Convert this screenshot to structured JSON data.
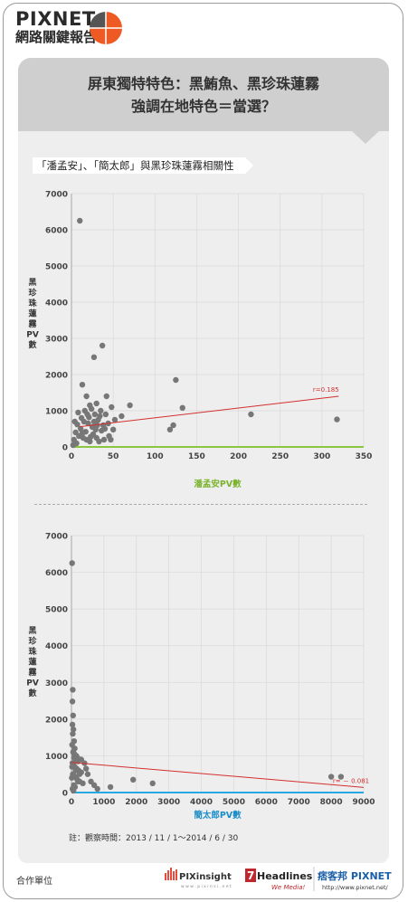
{
  "brand": {
    "name": "PIXNET",
    "subtitle": "網路關鍵報告"
  },
  "headline": {
    "line1": "屏東獨特特色：黑鮪魚、黑珍珠蓮霧",
    "line2": "強調在地特色＝當選？"
  },
  "chart_section_title": "「潘孟安」、「簡太郎」與黑珍珠蓮霧相關性",
  "note": "註：觀察時間：2013 / 11 / 1～2014 / 6 / 30",
  "footer": {
    "partner_label": "合作單位",
    "partner1": "PIXinsight",
    "partner1_url": "w w w . p i x i n s i . n e t",
    "partner2": "Headlines",
    "partner2_tag": "We Media!",
    "partner3": "痞客邦 PIXNET",
    "partner3_url": "http://www.pixnet.net/"
  },
  "colors": {
    "point": "#777777",
    "trend": "#d32f2f",
    "axis1": "#8cc63f",
    "axis2": "#29a9e1",
    "xlabel1": "#7bb32e",
    "xlabel2": "#1b8ec7"
  },
  "chart_data": [
    {
      "type": "scatter",
      "xlabel": "潘孟安PV數",
      "ylabel": "黑珍珠蓮霧PV數",
      "xlim": [
        0,
        350
      ],
      "ylim": [
        0,
        7000
      ],
      "xticks": [
        0,
        50,
        100,
        150,
        200,
        250,
        300,
        350
      ],
      "yticks": [
        0,
        1000,
        2000,
        3000,
        4000,
        5000,
        6000,
        7000
      ],
      "grid": true,
      "annotation": "r=0.185",
      "trend": [
        [
          10,
          560
        ],
        [
          320,
          1400
        ]
      ],
      "points": [
        [
          10,
          6250
        ],
        [
          37,
          2800
        ],
        [
          27,
          2480
        ],
        [
          125,
          1850
        ],
        [
          133,
          1080
        ],
        [
          122,
          600
        ],
        [
          118,
          480
        ],
        [
          215,
          900
        ],
        [
          318,
          760
        ],
        [
          13,
          1720
        ],
        [
          18,
          1400
        ],
        [
          42,
          1400
        ],
        [
          70,
          1150
        ],
        [
          60,
          850
        ],
        [
          50,
          480
        ],
        [
          48,
          1100
        ],
        [
          30,
          1200
        ],
        [
          22,
          1150
        ],
        [
          35,
          1000
        ],
        [
          8,
          950
        ],
        [
          12,
          800
        ],
        [
          15,
          700
        ],
        [
          20,
          650
        ],
        [
          25,
          550
        ],
        [
          28,
          900
        ],
        [
          32,
          750
        ],
        [
          38,
          600
        ],
        [
          40,
          500
        ],
        [
          45,
          300
        ],
        [
          5,
          400
        ],
        [
          9,
          300
        ],
        [
          14,
          250
        ],
        [
          18,
          200
        ],
        [
          22,
          150
        ],
        [
          26,
          350
        ],
        [
          30,
          250
        ],
        [
          33,
          150
        ],
        [
          36,
          450
        ],
        [
          39,
          200
        ],
        [
          11,
          500
        ],
        [
          16,
          1000
        ],
        [
          19,
          900
        ],
        [
          24,
          1050
        ],
        [
          27,
          700
        ],
        [
          31,
          600
        ],
        [
          34,
          850
        ],
        [
          3,
          200
        ],
        [
          6,
          100
        ],
        [
          2,
          50
        ],
        [
          44,
          650
        ],
        [
          52,
          750
        ],
        [
          17,
          420
        ],
        [
          21,
          820
        ],
        [
          29,
          480
        ],
        [
          13,
          380
        ],
        [
          7,
          620
        ],
        [
          4,
          700
        ],
        [
          23,
          280
        ],
        [
          41,
          900
        ],
        [
          47,
          200
        ]
      ]
    },
    {
      "type": "scatter",
      "xlabel": "簡太郎PV數",
      "ylabel": "黑珍珠蓮霧PV數",
      "xlim": [
        0,
        9000
      ],
      "ylim": [
        0,
        7000
      ],
      "xticks": [
        0,
        1000,
        2000,
        3000,
        4000,
        5000,
        6000,
        7000,
        8000,
        9000
      ],
      "yticks": [
        0,
        1000,
        2000,
        3000,
        4000,
        5000,
        6000,
        7000
      ],
      "grid": true,
      "annotation": "r= － 0.081",
      "trend": [
        [
          0,
          820
        ],
        [
          9000,
          140
        ]
      ],
      "points": [
        [
          20,
          6250
        ],
        [
          40,
          2800
        ],
        [
          30,
          2480
        ],
        [
          50,
          2100
        ],
        [
          30,
          1850
        ],
        [
          60,
          1720
        ],
        [
          40,
          1600
        ],
        [
          80,
          1400
        ],
        [
          20,
          1300
        ],
        [
          100,
          1200
        ],
        [
          50,
          1100
        ],
        [
          150,
          1000
        ],
        [
          80,
          950
        ],
        [
          120,
          900
        ],
        [
          200,
          850
        ],
        [
          30,
          800
        ],
        [
          60,
          750
        ],
        [
          100,
          700
        ],
        [
          160,
          650
        ],
        [
          220,
          600
        ],
        [
          300,
          550
        ],
        [
          40,
          500
        ],
        [
          90,
          450
        ],
        [
          140,
          400
        ],
        [
          180,
          350
        ],
        [
          250,
          300
        ],
        [
          350,
          250
        ],
        [
          70,
          200
        ],
        [
          110,
          150
        ],
        [
          30,
          100
        ],
        [
          500,
          500
        ],
        [
          700,
          200
        ],
        [
          1200,
          150
        ],
        [
          1900,
          350
        ],
        [
          2500,
          250
        ],
        [
          8000,
          430
        ],
        [
          8300,
          430
        ],
        [
          400,
          800
        ],
        [
          600,
          300
        ],
        [
          800,
          100
        ],
        [
          200,
          300
        ],
        [
          250,
          500
        ],
        [
          130,
          600
        ],
        [
          10,
          400
        ],
        [
          300,
          900
        ],
        [
          450,
          650
        ],
        [
          60,
          50
        ],
        [
          180,
          950
        ],
        [
          90,
          1050
        ],
        [
          20,
          700
        ]
      ]
    }
  ]
}
